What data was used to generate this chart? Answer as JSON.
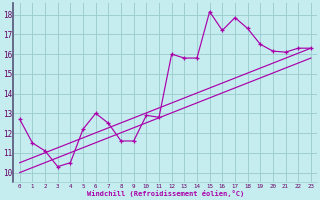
{
  "xlabel": "Windchill (Refroidissement éolien,°C)",
  "bg_color": "#c5edf0",
  "grid_color": "#9ecfcf",
  "line_color": "#aa00aa",
  "border_color": "#555577",
  "xlim": [
    -0.5,
    23.5
  ],
  "ylim": [
    9.5,
    18.6
  ],
  "xticks": [
    0,
    1,
    2,
    3,
    4,
    5,
    6,
    7,
    8,
    9,
    10,
    11,
    12,
    13,
    14,
    15,
    16,
    17,
    18,
    19,
    20,
    21,
    22,
    23
  ],
  "yticks": [
    10,
    11,
    12,
    13,
    14,
    15,
    16,
    17,
    18
  ],
  "line1_x": [
    0,
    1,
    2,
    3,
    4,
    5,
    6,
    7,
    8,
    9,
    10,
    11,
    12,
    13,
    14,
    15,
    16,
    17,
    18,
    19,
    20,
    21,
    22,
    23
  ],
  "line1_y": [
    12.7,
    11.5,
    11.1,
    10.3,
    10.5,
    12.2,
    13.0,
    12.5,
    11.6,
    11.6,
    12.9,
    12.8,
    16.0,
    15.8,
    15.8,
    18.15,
    17.2,
    17.85,
    17.3,
    16.5,
    16.15,
    16.1,
    16.3,
    16.3
  ],
  "line2_x": [
    0,
    23
  ],
  "line2_y": [
    10.5,
    16.3
  ],
  "line3_x": [
    0,
    23
  ],
  "line3_y": [
    10.0,
    15.8
  ]
}
